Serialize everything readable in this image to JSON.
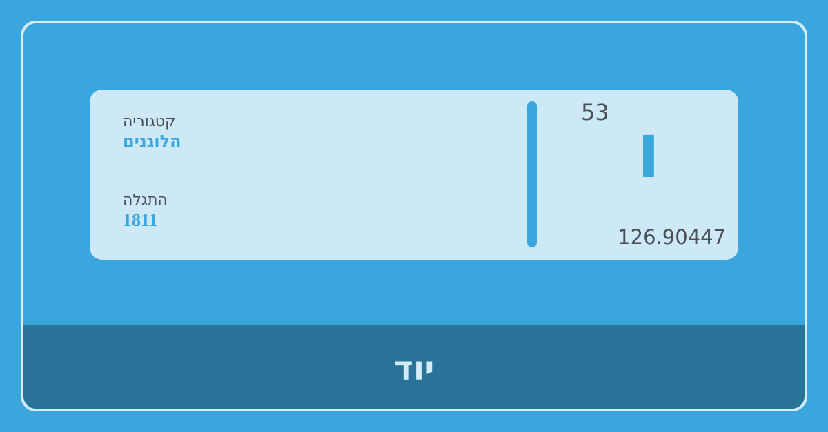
{
  "element": {
    "atomic_number": "53",
    "symbol": "I",
    "atomic_mass": "126.90447",
    "name": "יוד"
  },
  "category": {
    "label": "קטגוריה",
    "value": "הלוגנים"
  },
  "discovery": {
    "label": "התגלה",
    "value": "1811"
  },
  "colors": {
    "background": "#3ba6dd",
    "card": "#cde9f6",
    "footer": "#2a7399",
    "text_dark": "#4a4f55",
    "accent": "#3ba6dd",
    "frame": "#d3ecf8"
  }
}
